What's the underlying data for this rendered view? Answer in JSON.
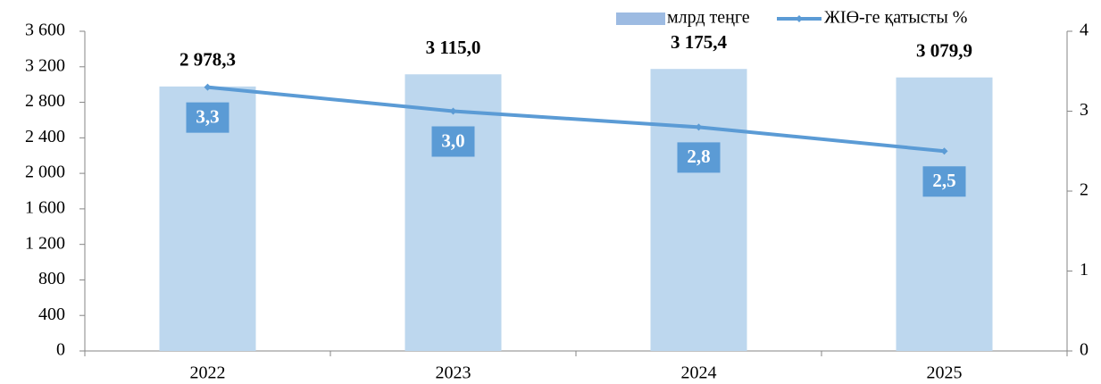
{
  "chart_data": {
    "type": "bar",
    "categories": [
      "2022",
      "2023",
      "2024",
      "2025"
    ],
    "series": [
      {
        "name": "млрд теңге",
        "type": "bar",
        "color": "#bdd7ee",
        "legend_color": "#9dbbe2",
        "values": [
          2978.3,
          3115.0,
          3175.4,
          3079.9
        ],
        "value_labels": [
          "2 978,3",
          "3 115,0",
          "3 175,4",
          "3 079,9"
        ]
      },
      {
        "name": "ЖІӨ-ге қатысты %",
        "type": "line",
        "axis": "y2",
        "color": "#5b9bd5",
        "values": [
          3.3,
          3.0,
          2.8,
          2.5
        ],
        "value_labels": [
          "3,3",
          "3,0",
          "2,8",
          "2,5"
        ]
      }
    ],
    "ylim": [
      0,
      3600
    ],
    "yticks": [
      0,
      400,
      800,
      {
        "value": 1200,
        "label": "1 200"
      },
      {
        "value": 1600,
        "label": "1 600"
      },
      {
        "value": 2000,
        "label": "2 000"
      },
      {
        "value": 2400,
        "label": "2 400"
      },
      {
        "value": 2800,
        "label": "2 800"
      },
      {
        "value": 3200,
        "label": "3 200"
      },
      {
        "value": 3600,
        "label": "3 600"
      }
    ],
    "y2lim": [
      0,
      4
    ],
    "y2ticks": [
      0,
      1,
      2,
      3,
      4
    ],
    "legend": "top-right"
  }
}
